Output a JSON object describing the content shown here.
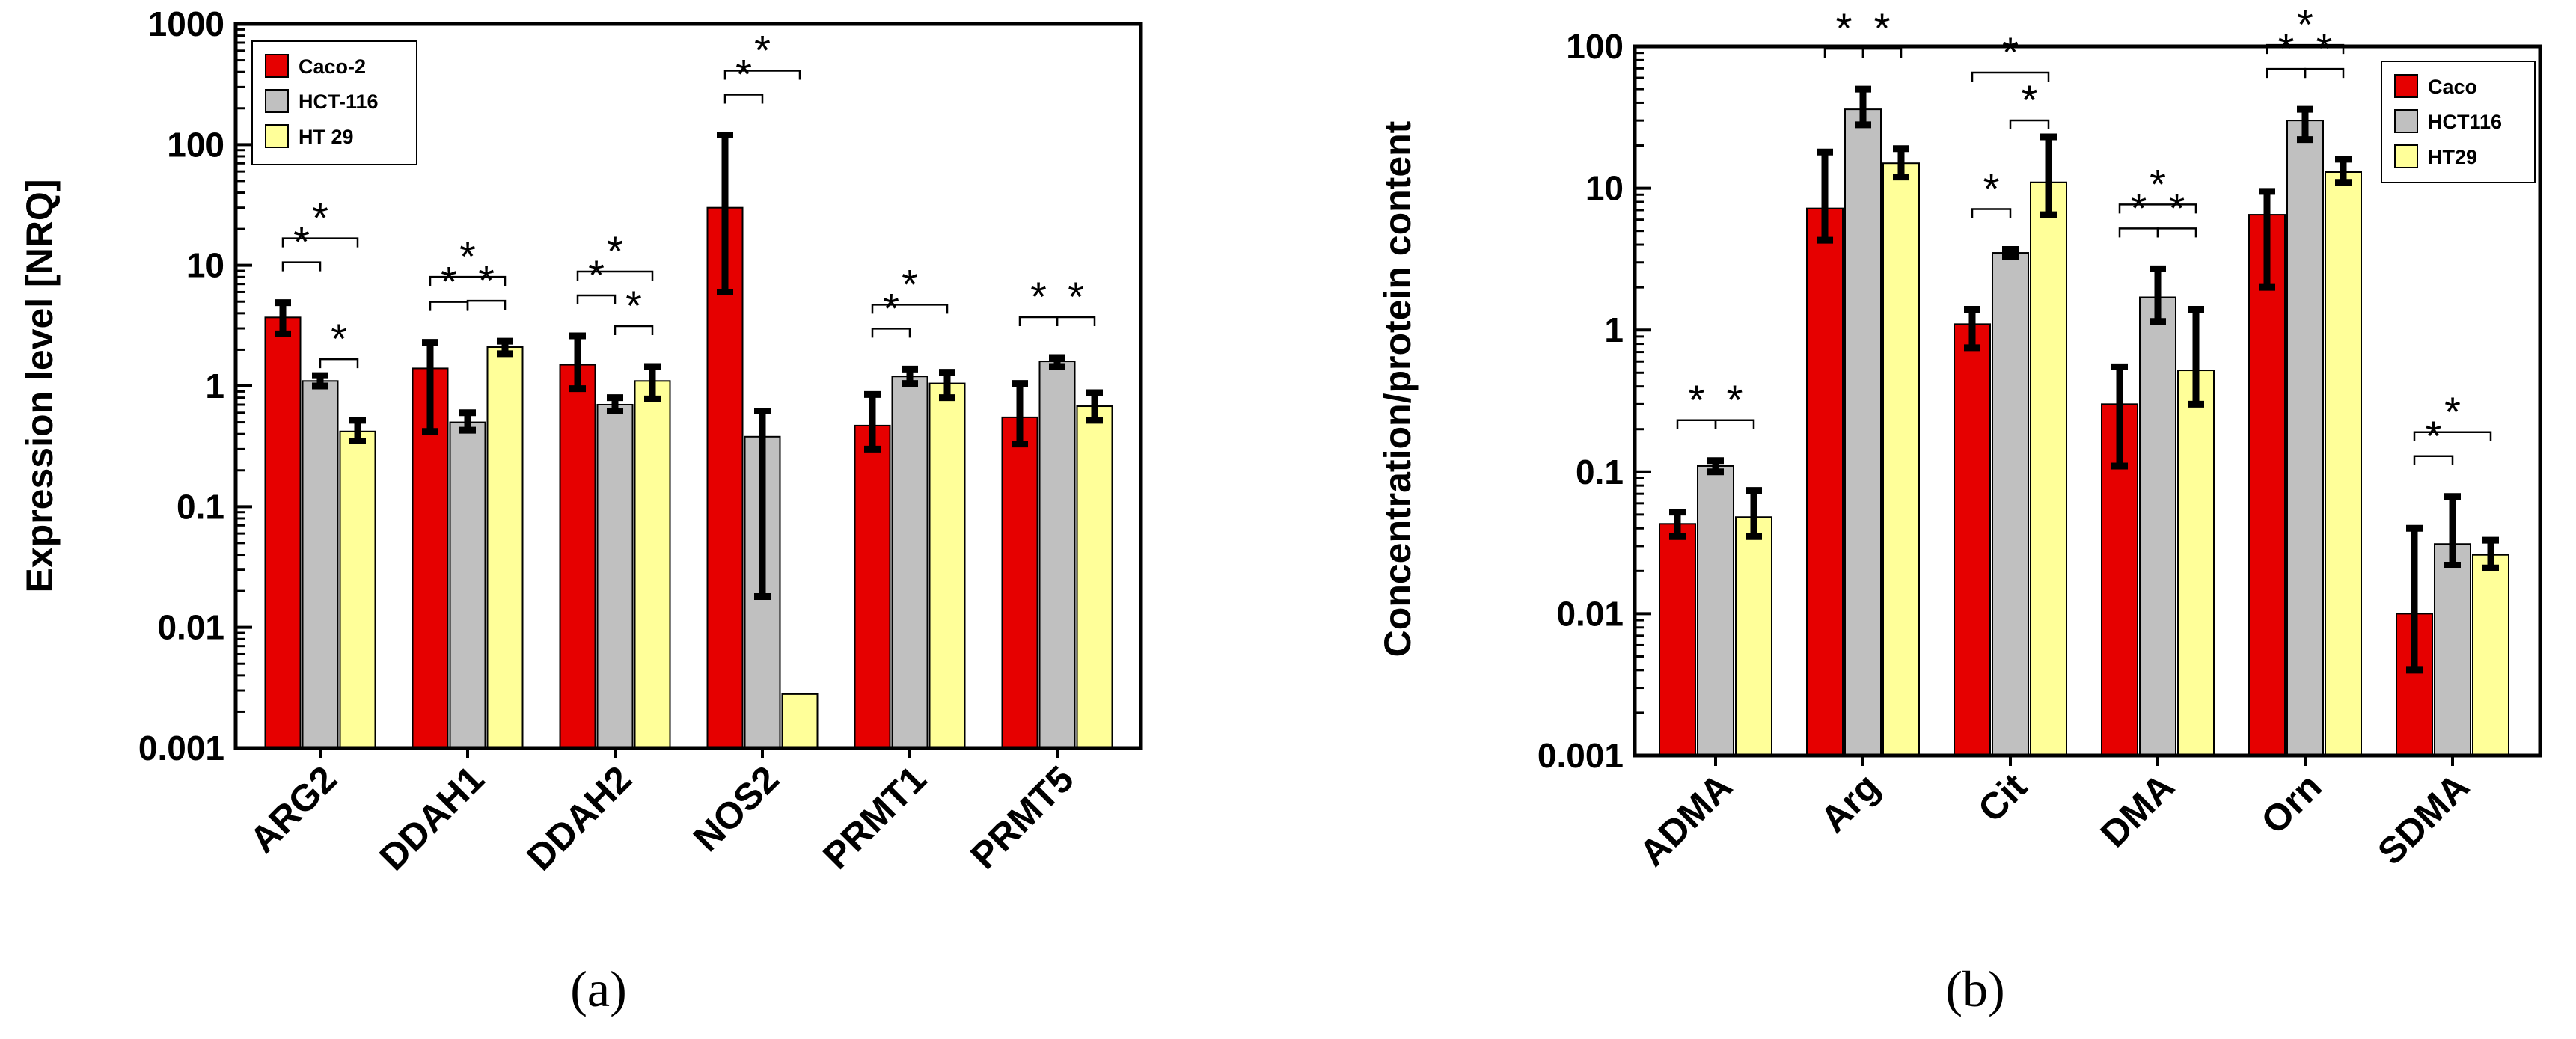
{
  "colors": {
    "red": "#E60000",
    "grey": "#C0C0C0",
    "yellow": "#FFFF99",
    "axis": "#000000"
  },
  "chart_data": [
    {
      "type": "bar",
      "panel_label": "(a)",
      "ylabel": "Expression level [NRQ]",
      "xlabel": "",
      "yscale": "log",
      "ylim": [
        0.001,
        1000
      ],
      "yticks": [
        "0.001",
        "0.01",
        "0.1",
        "1",
        "10",
        "100",
        "1000"
      ],
      "legend_position": "top-left",
      "categories": [
        "ARG2",
        "DDAH1",
        "DDAH2",
        "NOS2",
        "PRMT1",
        "PRMT5"
      ],
      "series": [
        {
          "name": "Caco-2",
          "color": "red",
          "values": [
            3.7,
            1.4,
            1.5,
            30,
            0.47,
            0.55
          ],
          "err_low": [
            2.7,
            0.42,
            0.95,
            6,
            0.3,
            0.33
          ],
          "err_high": [
            4.9,
            2.3,
            2.6,
            120,
            0.85,
            1.05
          ]
        },
        {
          "name": "HCT-116",
          "color": "grey",
          "values": [
            1.1,
            0.5,
            0.7,
            0.38,
            1.2,
            1.6
          ],
          "err_low": [
            1.0,
            0.43,
            0.62,
            0.018,
            1.05,
            1.45
          ],
          "err_high": [
            1.22,
            0.6,
            0.8,
            0.62,
            1.38,
            1.72
          ]
        },
        {
          "name": "HT 29",
          "color": "yellow",
          "values": [
            0.42,
            2.1,
            1.1,
            0.0028,
            1.05,
            0.68
          ],
          "err_low": [
            0.35,
            1.85,
            0.78,
            null,
            0.8,
            0.52
          ],
          "err_high": [
            0.52,
            2.35,
            1.45,
            null,
            1.3,
            0.88
          ]
        }
      ],
      "significance": [
        {
          "category": 0,
          "from": 0,
          "to": 1,
          "level": 1
        },
        {
          "category": 0,
          "from": 0,
          "to": 2,
          "level": 2
        },
        {
          "category": 0,
          "from": 1,
          "to": 2,
          "level": 0
        },
        {
          "category": 1,
          "from": 0,
          "to": 1,
          "level": 1
        },
        {
          "category": 1,
          "from": 1,
          "to": 2,
          "level": 1
        },
        {
          "category": 1,
          "from": 0,
          "to": 2,
          "level": 2
        },
        {
          "category": 2,
          "from": 0,
          "to": 1,
          "level": 1
        },
        {
          "category": 2,
          "from": 1,
          "to": 2,
          "level": 1
        },
        {
          "category": 2,
          "from": 0,
          "to": 2,
          "level": 2
        },
        {
          "category": 3,
          "from": 0,
          "to": 1,
          "level": 1
        },
        {
          "category": 3,
          "from": 0,
          "to": 2,
          "level": 2
        },
        {
          "category": 4,
          "from": 0,
          "to": 1,
          "level": 1
        },
        {
          "category": 4,
          "from": 0,
          "to": 2,
          "level": 2
        },
        {
          "category": 5,
          "from": 0,
          "to": 1,
          "level": 1
        },
        {
          "category": 5,
          "from": 1,
          "to": 2,
          "level": 1
        }
      ]
    },
    {
      "type": "bar",
      "panel_label": "(b)",
      "ylabel": "Concentration/protein content",
      "xlabel": "",
      "yscale": "log",
      "ylim": [
        0.001,
        100
      ],
      "yticks": [
        "0.001",
        "0.01",
        "0.1",
        "1",
        "10",
        "100"
      ],
      "legend_position": "top-right",
      "categories": [
        "ADMA",
        "Arg",
        "Cit",
        "DMA",
        "Orn",
        "SDMA"
      ],
      "series": [
        {
          "name": "Caco",
          "color": "red",
          "values": [
            0.043,
            7.2,
            1.1,
            0.3,
            6.5,
            0.01
          ],
          "err_low": [
            0.035,
            4.3,
            0.75,
            0.11,
            2.0,
            0.004
          ],
          "err_high": [
            0.052,
            18,
            1.4,
            0.55,
            9.5,
            0.04
          ]
        },
        {
          "name": "HCT116",
          "color": "grey",
          "values": [
            0.11,
            36,
            3.5,
            1.7,
            30,
            0.031
          ],
          "err_low": [
            0.1,
            28,
            3.3,
            1.15,
            22,
            0.022
          ],
          "err_high": [
            0.12,
            50,
            3.7,
            2.7,
            36,
            0.067
          ]
        },
        {
          "name": "HT29",
          "color": "yellow",
          "values": [
            0.048,
            15,
            11,
            0.52,
            13,
            0.026
          ],
          "err_low": [
            0.035,
            12,
            6.5,
            0.3,
            11,
            0.021
          ],
          "err_high": [
            0.074,
            19,
            23,
            1.4,
            16,
            0.033
          ]
        }
      ],
      "significance": [
        {
          "category": 0,
          "from": 0,
          "to": 1,
          "level": 1
        },
        {
          "category": 0,
          "from": 1,
          "to": 2,
          "level": 1
        },
        {
          "category": 1,
          "from": 0,
          "to": 1,
          "level": 1
        },
        {
          "category": 1,
          "from": 1,
          "to": 2,
          "level": 1
        },
        {
          "category": 2,
          "from": 0,
          "to": 1,
          "level": 1
        },
        {
          "category": 2,
          "from": 0,
          "to": 2,
          "level": 2
        },
        {
          "category": 2,
          "from": 1,
          "to": 2,
          "level": 0
        },
        {
          "category": 3,
          "from": 0,
          "to": 1,
          "level": 1
        },
        {
          "category": 3,
          "from": 1,
          "to": 2,
          "level": 1
        },
        {
          "category": 3,
          "from": 0,
          "to": 2,
          "level": 2
        },
        {
          "category": 4,
          "from": 0,
          "to": 1,
          "level": 1
        },
        {
          "category": 4,
          "from": 1,
          "to": 2,
          "level": 1
        },
        {
          "category": 4,
          "from": 0,
          "to": 2,
          "level": 2
        },
        {
          "category": 5,
          "from": 0,
          "to": 1,
          "level": 1
        },
        {
          "category": 5,
          "from": 0,
          "to": 2,
          "level": 2
        }
      ]
    }
  ]
}
